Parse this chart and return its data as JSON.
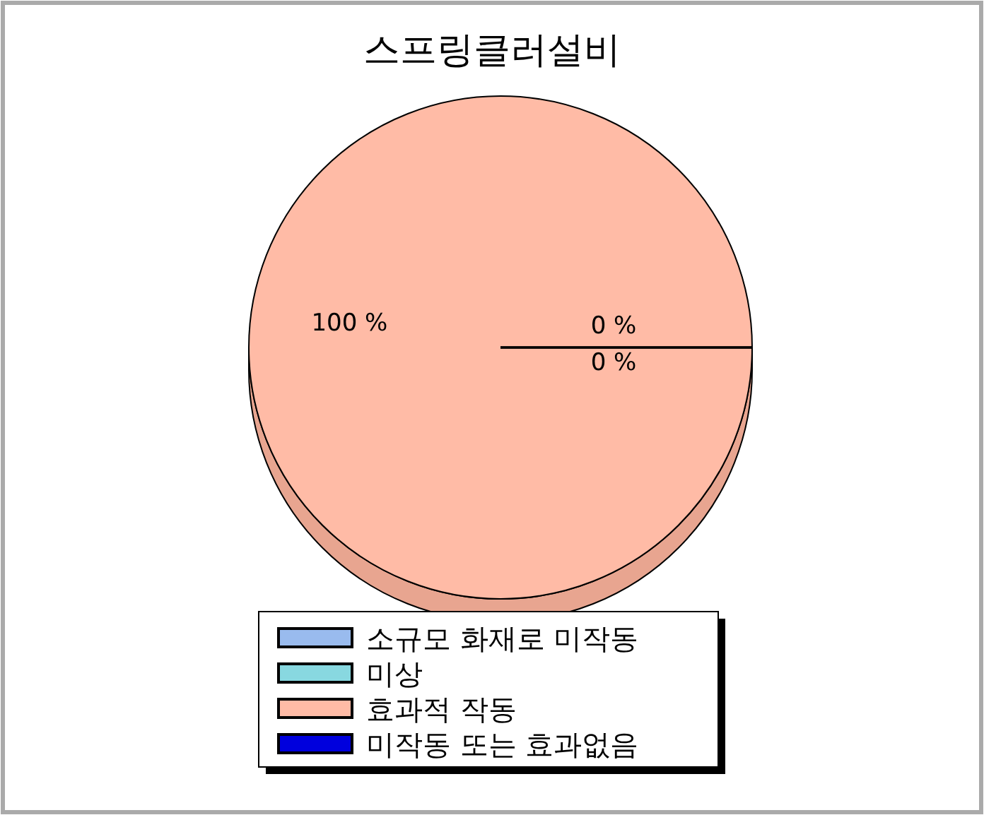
{
  "chart_data": {
    "type": "pie",
    "title": "스프링클러설비",
    "categories": [
      "소규모 화재로 미작동",
      "미상",
      "효과적 작동",
      "미작동 또는 효과없음"
    ],
    "values": [
      0,
      0,
      100,
      0
    ],
    "colors": [
      "#99bbee",
      "#88d8e0",
      "#ffbba6",
      "#0000dd"
    ],
    "value_labels": [
      "0 %",
      "0 %",
      "100 %",
      null
    ],
    "legend": "bottom"
  }
}
